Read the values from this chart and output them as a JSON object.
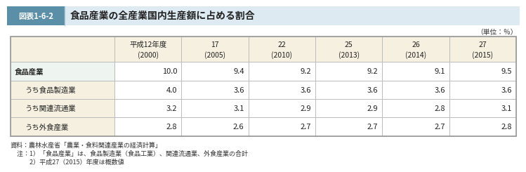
{
  "title_box_label": "図表1-6-2",
  "title_text": "食品産業の全産業国内生産額に占める割合",
  "unit_text": "（単位：％）",
  "col_headers": [
    "平成12年度\n(2000)",
    "17\n(2005)",
    "22\n(2010)",
    "25\n(2013)",
    "26\n(2014)",
    "27\n(2015)"
  ],
  "row_labels": [
    "食品産業",
    "うち食品製造業",
    "うち関連流通業",
    "うち外食産業"
  ],
  "row_indent": [
    false,
    true,
    true,
    true
  ],
  "data_fmt": [
    [
      "10.0",
      "9.4",
      "9.2",
      "9.2",
      "9.1",
      "9.5"
    ],
    [
      "4.0",
      "3.6",
      "3.6",
      "3.6",
      "3.6",
      "3.6"
    ],
    [
      "3.2",
      "3.1",
      "2.9",
      "2.9",
      "2.8",
      "3.1"
    ],
    [
      "2.8",
      "2.6",
      "2.7",
      "2.7",
      "2.7",
      "2.8"
    ]
  ],
  "footnotes": [
    "資料：農林水産省「農業・食料関連産業の経済計算」",
    "　注：1）「食品産業」は、食品製造業（食品工業）、関連流通業、外食産業の合計",
    "　　　2）平成27（2015）年度は概数値"
  ],
  "title_bar_bg": "#ddeaf2",
  "title_box_bg": "#5b8fa8",
  "title_box_text_color": "#ffffff",
  "header_bg": "#f5f0e0",
  "row_label_bg_main": "#eef4ee",
  "row_label_bg_sub": "#f5f0e0",
  "data_bg": "#ffffff",
  "border_color": "#bbbbbb",
  "outer_border_color": "#999999"
}
